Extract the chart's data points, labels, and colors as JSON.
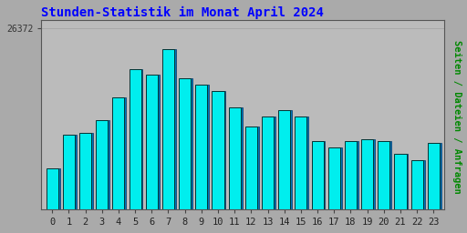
{
  "title": "Stunden-Statistik im Monat April 2024",
  "title_color": "#0000FF",
  "title_fontsize": 10,
  "ylabel": "Seiten / Dateien / Anfragen",
  "ylabel_color": "#008800",
  "ylabel_fontsize": 7.5,
  "xlabel_labels": [
    "0",
    "1",
    "2",
    "3",
    "4",
    "5",
    "6",
    "7",
    "8",
    "9",
    "10",
    "11",
    "12",
    "13",
    "14",
    "15",
    "16",
    "17",
    "18",
    "19",
    "20",
    "21",
    "22",
    "23"
  ],
  "bar_color": "#00EEEE",
  "bar_edge_color": "#003333",
  "bar_shadow_color": "#0077BB",
  "background_color": "#AAAAAA",
  "plot_bg_color": "#BBBBBB",
  "ytick_label": "26372",
  "ymin": 23500,
  "ymax": 26372,
  "values": [
    24150,
    24680,
    24720,
    24920,
    25280,
    25720,
    25640,
    26050,
    25580,
    25480,
    25380,
    25120,
    24820,
    24980,
    25080,
    24980,
    24580,
    24480,
    24580,
    24620,
    24580,
    24380,
    24280,
    24550
  ]
}
